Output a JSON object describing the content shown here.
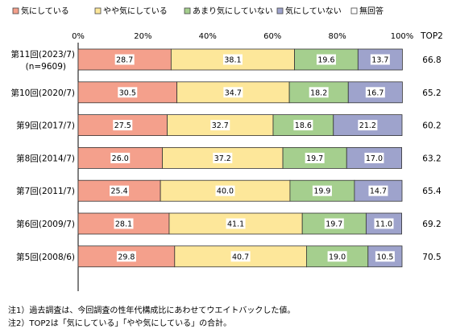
{
  "chart_data": {
    "type": "bar",
    "orientation": "horizontal",
    "stacked": true,
    "percent_stacked": true,
    "categories": [
      "第11回(2023/7)",
      "第10回(2020/7)",
      "第9回(2017/7)",
      "第8回(2014/7)",
      "第7回(2011/7)",
      "第6回(2009/7)",
      "第5回(2008/6)"
    ],
    "category_sublabels": [
      "(n=9609)",
      "",
      "",
      "",
      "",
      "",
      ""
    ],
    "series": [
      {
        "name": "気にしている",
        "color": "#f4a08c",
        "values": [
          28.7,
          30.5,
          27.5,
          26.0,
          25.4,
          28.1,
          29.8
        ]
      },
      {
        "name": "やや気にしている",
        "color": "#fde79a",
        "values": [
          38.1,
          34.7,
          32.7,
          37.2,
          40.0,
          41.1,
          40.7
        ]
      },
      {
        "name": "あまり気にしていない",
        "color": "#a5cf8e",
        "values": [
          19.6,
          18.2,
          18.6,
          19.7,
          19.9,
          19.7,
          19.0
        ]
      },
      {
        "name": "気にしていない",
        "color": "#9ea3cc",
        "values": [
          13.7,
          16.7,
          21.2,
          17.0,
          14.7,
          11.0,
          10.5
        ]
      },
      {
        "name": "無回答",
        "color": "#ffffff",
        "values": [
          0,
          0,
          0,
          0,
          0,
          0,
          0
        ]
      }
    ],
    "value_labels": [
      [
        "28.7",
        "30.5",
        "27.5",
        "26.0",
        "25.4",
        "28.1",
        "29.8"
      ],
      [
        "38.1",
        "34.7",
        "32.7",
        "37.2",
        "40.0",
        "41.1",
        "40.7"
      ],
      [
        "19.6",
        "18.2",
        "18.6",
        "19.7",
        "19.9",
        "19.7",
        "19.0"
      ],
      [
        "13.7",
        "16.7",
        "21.2",
        "17.0",
        "14.7",
        "11.0",
        "10.5"
      ]
    ],
    "top2_header": "TOP2",
    "top2_values": [
      "66.8",
      "65.2",
      "60.2",
      "63.2",
      "65.4",
      "69.2",
      "70.5"
    ],
    "x_ticks": [
      "0%",
      "20%",
      "40%",
      "60%",
      "80%",
      "100%"
    ],
    "xlim": [
      0,
      100
    ],
    "legend_position": "top",
    "grid": false
  },
  "notes": [
    "注1）過去調査は、今回調査の性年代構成比にあわせてウエイトバックした値。",
    "注2）TOP2は「気にしている」「やや気にしている」の合計。"
  ]
}
